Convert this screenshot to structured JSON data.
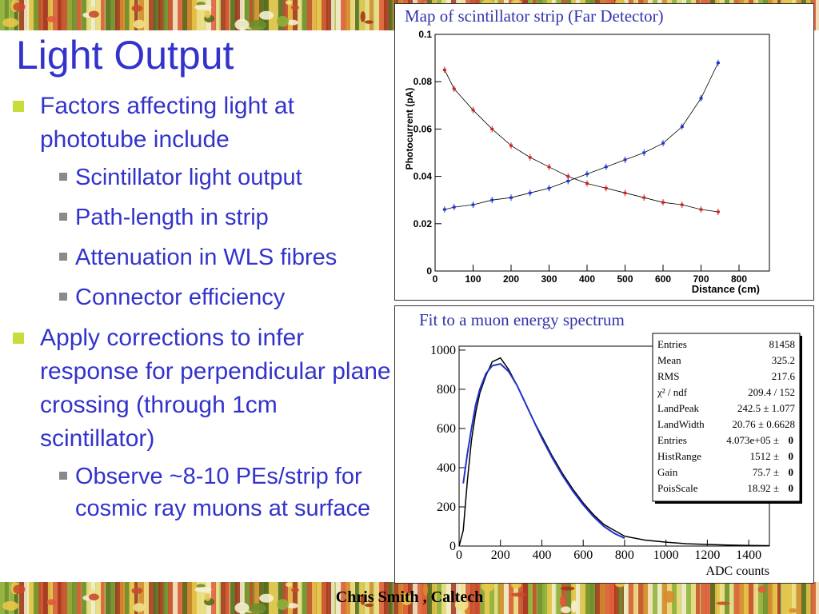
{
  "slide": {
    "title": "Light Output",
    "footer": "Chris Smith , Caltech",
    "bullets": [
      {
        "level": 1,
        "text": "Factors affecting light at phototube include"
      },
      {
        "level": 2,
        "text": "Scintillator light output"
      },
      {
        "level": 2,
        "text": "Path-length in strip"
      },
      {
        "level": 2,
        "text": "Attenuation in WLS fibres"
      },
      {
        "level": 2,
        "text": "Connector efficiency"
      },
      {
        "level": 1,
        "text": "Apply corrections to infer response for perpendicular plane crossing (through 1cm scintillator)"
      },
      {
        "level": 2,
        "text": "Observe ~8-10 PEs/strip for cosmic ray muons at surface"
      }
    ],
    "colors": {
      "text": "#3333cc",
      "bullet1": "#c8dc3c",
      "bullet2": "#8a8a8a"
    }
  },
  "chart_data": [
    {
      "type": "scatter",
      "title": "Map of scintillator strip (Far Detector)",
      "xlabel": "Distance (cm)",
      "ylabel": "Photocurrent (pA)",
      "xlim": [
        0,
        880
      ],
      "ylim": [
        0,
        0.1
      ],
      "xticks": [
        "0",
        "100",
        "200",
        "300",
        "400",
        "500",
        "600",
        "700",
        "800"
      ],
      "yticks": [
        "0",
        "0.02",
        "0.04",
        "0.06",
        "0.08",
        "0.1"
      ],
      "series": [
        {
          "color": "#cc2222",
          "x": [
            25,
            50,
            100,
            150,
            200,
            250,
            300,
            350,
            400,
            450,
            500,
            550,
            600,
            650,
            700,
            745
          ],
          "values": [
            0.085,
            0.077,
            0.068,
            0.06,
            0.053,
            0.048,
            0.044,
            0.04,
            0.037,
            0.035,
            0.033,
            0.031,
            0.029,
            0.028,
            0.026,
            0.025
          ]
        },
        {
          "color": "#2233cc",
          "x": [
            25,
            50,
            100,
            150,
            200,
            250,
            300,
            350,
            400,
            450,
            500,
            550,
            600,
            650,
            700,
            745
          ],
          "values": [
            0.026,
            0.027,
            0.028,
            0.03,
            0.031,
            0.033,
            0.035,
            0.038,
            0.041,
            0.044,
            0.047,
            0.05,
            0.054,
            0.061,
            0.073,
            0.088
          ]
        }
      ]
    },
    {
      "type": "line",
      "title": "Fit to a muon energy spectrum",
      "xlabel": "ADC counts",
      "ylabel": "",
      "xlim": [
        0,
        1500
      ],
      "ylim": [
        0,
        1020
      ],
      "xticks": [
        "0",
        "200",
        "400",
        "600",
        "800",
        "1000",
        "1200",
        "1400"
      ],
      "yticks": [
        "0",
        "200",
        "400",
        "600",
        "800",
        "1000"
      ],
      "series": [
        {
          "color": "#000000",
          "x": [
            0,
            20,
            40,
            60,
            80,
            100,
            130,
            160,
            200,
            240,
            280,
            320,
            360,
            400,
            450,
            500,
            550,
            600,
            650,
            700,
            750,
            800,
            900,
            1000,
            1100,
            1200,
            1300,
            1400,
            1500
          ],
          "values": [
            0,
            80,
            330,
            540,
            680,
            780,
            870,
            940,
            960,
            900,
            820,
            730,
            640,
            560,
            460,
            370,
            290,
            220,
            160,
            110,
            80,
            50,
            30,
            20,
            12,
            8,
            5,
            3,
            2
          ]
        },
        {
          "color": "#2233cc",
          "x": [
            20,
            40,
            60,
            80,
            100,
            130,
            160,
            200,
            240,
            280,
            320,
            360,
            400,
            450,
            500,
            550,
            600,
            650,
            700,
            750,
            800
          ],
          "values": [
            320,
            470,
            600,
            720,
            800,
            880,
            920,
            930,
            890,
            820,
            730,
            640,
            550,
            450,
            360,
            280,
            210,
            150,
            100,
            65,
            40
          ]
        }
      ],
      "stats": [
        {
          "label": "Entries",
          "value": "81458",
          "err": ""
        },
        {
          "label": "Mean",
          "value": "325.2",
          "err": ""
        },
        {
          "label": "RMS",
          "value": "217.6",
          "err": ""
        },
        {
          "label": "χ² / ndf",
          "value": "209.4 / 152",
          "err": ""
        },
        {
          "label": "LandPeak",
          "value": "242.5 ± 1.077",
          "err": ""
        },
        {
          "label": "LandWidth",
          "value": "20.76 ± 0.6628",
          "err": ""
        },
        {
          "label": "Entries",
          "value": "4.073e+05 ±",
          "err": "0"
        },
        {
          "label": "HistRange",
          "value": "1512 ±",
          "err": "0"
        },
        {
          "label": "Gain",
          "value": "75.7 ±",
          "err": "0"
        },
        {
          "label": "PoisScale",
          "value": "18.92 ±",
          "err": "0"
        }
      ]
    }
  ]
}
